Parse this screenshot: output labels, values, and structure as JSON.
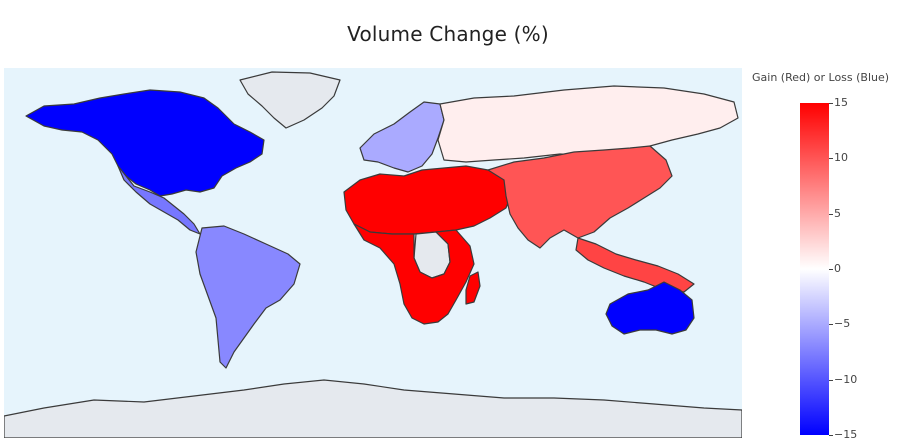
{
  "title": "Volume Change (%)",
  "colorbar": {
    "title": "Gain (Red) or Loss (Blue)",
    "range": [
      -15,
      15
    ],
    "ticks": [
      {
        "value": 15,
        "label": "15"
      },
      {
        "value": 10,
        "label": "10"
      },
      {
        "value": 5,
        "label": "5"
      },
      {
        "value": 0,
        "label": "0"
      },
      {
        "value": -5,
        "label": "−5"
      },
      {
        "value": -10,
        "label": "−10"
      },
      {
        "value": -15,
        "label": "−15"
      }
    ],
    "colors": {
      "max": "#ff0000",
      "mid": "#ffffff",
      "min": "#0000ff"
    }
  },
  "map": {
    "ocean_color": "#e6f4fc",
    "no_data_color": "#e5e9ee",
    "border_color": "#3a3a3a",
    "regions": [
      {
        "name": "North America",
        "value": -15
      },
      {
        "name": "Greenland",
        "value": null
      },
      {
        "name": "Central America",
        "value": -8
      },
      {
        "name": "South America",
        "value": -7
      },
      {
        "name": "Europe",
        "value": -5
      },
      {
        "name": "Russia",
        "value": 1
      },
      {
        "name": "North Africa and Middle East",
        "value": 15
      },
      {
        "name": "Central Africa",
        "value": null
      },
      {
        "name": "Sub-Saharan Africa",
        "value": 15
      },
      {
        "name": "Madagascar",
        "value": 15
      },
      {
        "name": "South and East Asia",
        "value": 10
      },
      {
        "name": "Southeast Asia",
        "value": 11
      },
      {
        "name": "Australia",
        "value": -15
      },
      {
        "name": "Antarctica",
        "value": null
      }
    ]
  }
}
